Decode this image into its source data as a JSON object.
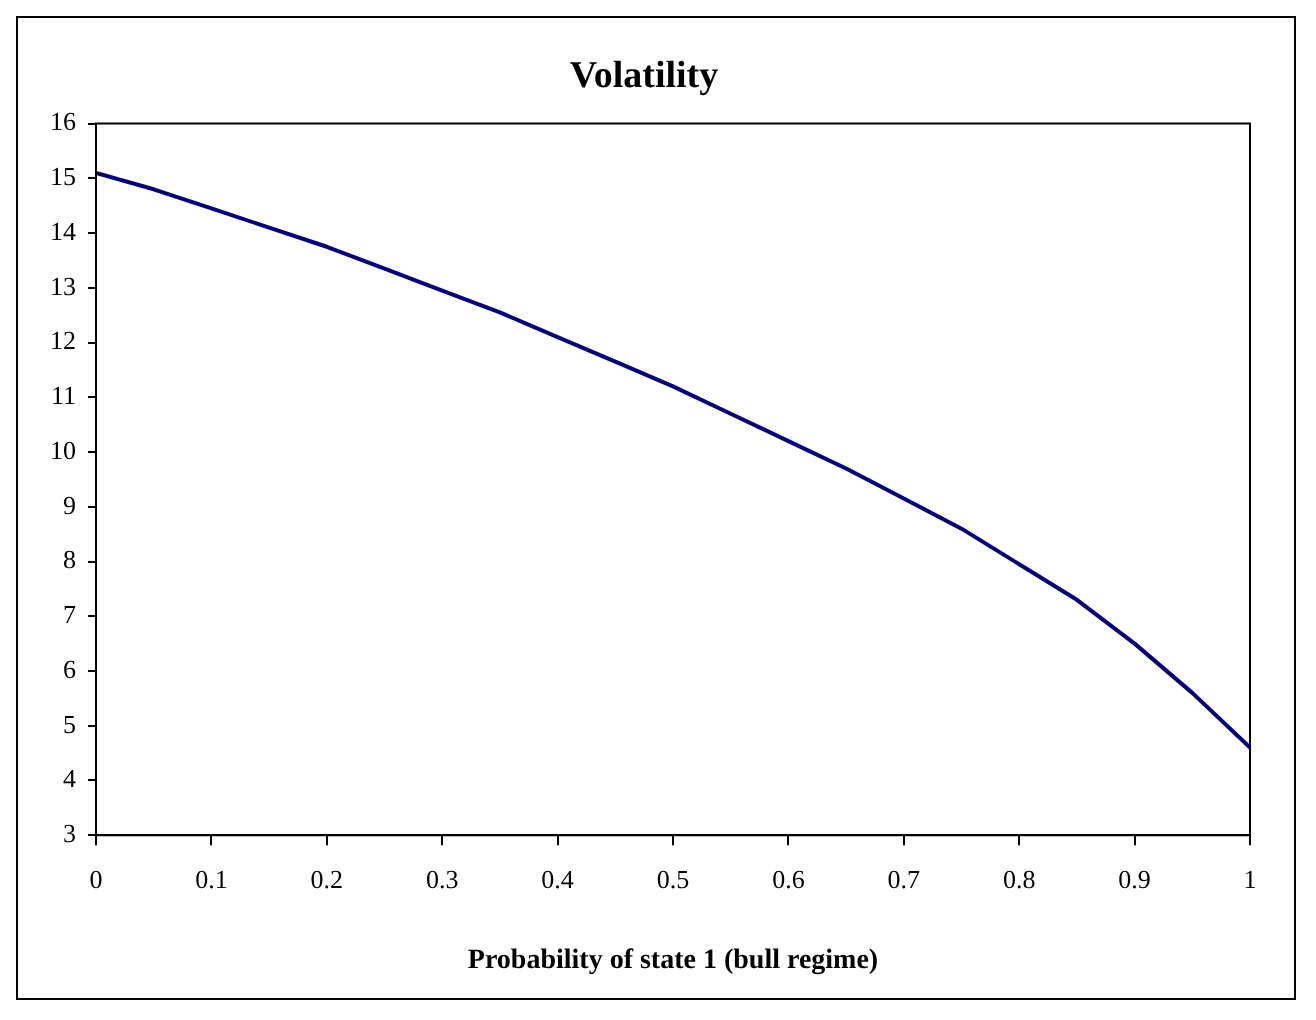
{
  "chart_data": {
    "type": "line",
    "title": "Volatility",
    "xlabel": "Probability of state 1 (bull regime)",
    "x": [
      0,
      0.05,
      0.1,
      0.15,
      0.2,
      0.25,
      0.3,
      0.35,
      0.4,
      0.45,
      0.5,
      0.55,
      0.6,
      0.65,
      0.7,
      0.75,
      0.8,
      0.85,
      0.9,
      0.95,
      1
    ],
    "series": [
      {
        "color": "#000080",
        "values": [
          15.1,
          14.8,
          14.45,
          14.1,
          13.75,
          13.35,
          12.95,
          12.55,
          12.1,
          11.65,
          11.2,
          10.7,
          10.2,
          9.7,
          9.15,
          8.6,
          7.95,
          7.3,
          6.5,
          5.6,
          4.6
        ]
      }
    ],
    "xlim": [
      0,
      1
    ],
    "xticks": [
      0,
      0.1,
      0.2,
      0.3,
      0.4,
      0.5,
      0.6,
      0.7,
      0.8,
      0.9,
      1
    ],
    "ylim": [
      3,
      16
    ],
    "yticks": [
      3,
      4,
      5,
      6,
      7,
      8,
      9,
      10,
      11,
      12,
      13,
      14,
      15,
      16
    ],
    "grid": false,
    "legend": false,
    "marker": "none",
    "line_style": "solid"
  }
}
